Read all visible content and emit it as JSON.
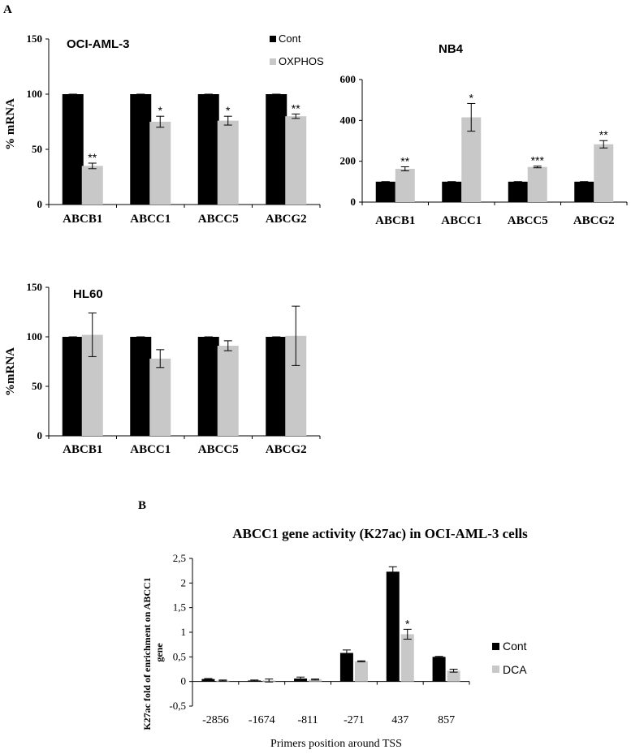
{
  "figure": {
    "panel_a_label": "A",
    "panel_b_label": "B"
  },
  "colors": {
    "cont": "#000000",
    "treated": "#c8c8c8",
    "axis": "#000000"
  },
  "chart_data": [
    {
      "id": "oci",
      "type": "bar",
      "title": "OCI-AML-3",
      "ylabel": "% mRNA",
      "xlabel": "",
      "ylim": [
        0,
        150
      ],
      "yticks": [
        "0",
        "50",
        "100",
        "150"
      ],
      "categories": [
        "ABCB1",
        "ABCC1",
        "ABCC5",
        "ABCG2"
      ],
      "legend": {
        "position": "top-right",
        "entries": [
          "Cont",
          "OXPHOS"
        ]
      },
      "series": [
        {
          "name": "Cont",
          "values": [
            100,
            100,
            100,
            100
          ],
          "errors": [
            0,
            0,
            0,
            0
          ]
        },
        {
          "name": "OXPHOS",
          "values": [
            35,
            75,
            76,
            80
          ],
          "errors": [
            2.5,
            5,
            4,
            2
          ]
        }
      ],
      "significance": [
        "**",
        "*",
        "*",
        "**"
      ]
    },
    {
      "id": "nb4",
      "type": "bar",
      "title": "NB4",
      "ylabel": "",
      "xlabel": "",
      "ylim": [
        0,
        600
      ],
      "yticks": [
        "0",
        "200",
        "400",
        "600"
      ],
      "categories": [
        "ABCB1",
        "ABCC1",
        "ABCC5",
        "ABCG2"
      ],
      "series": [
        {
          "name": "Cont",
          "values": [
            100,
            100,
            100,
            100
          ],
          "errors": [
            0,
            0,
            0,
            0
          ]
        },
        {
          "name": "OXPHOS",
          "values": [
            163,
            415,
            172,
            283
          ],
          "errors": [
            10,
            68,
            4,
            18
          ]
        }
      ],
      "significance": [
        "**",
        "*",
        "***",
        "**"
      ]
    },
    {
      "id": "hl60",
      "type": "bar",
      "title": "HL60",
      "ylabel": "%mRNA",
      "xlabel": "",
      "ylim": [
        0,
        150
      ],
      "yticks": [
        "0",
        "50",
        "100",
        "150"
      ],
      "categories": [
        "ABCB1",
        "ABCC1",
        "ABCC5",
        "ABCG2"
      ],
      "series": [
        {
          "name": "Cont",
          "values": [
            100,
            100,
            100,
            100
          ],
          "errors": [
            0,
            0,
            0,
            0
          ]
        },
        {
          "name": "OXPHOS",
          "values": [
            102,
            78,
            91,
            101
          ],
          "errors": [
            22,
            9,
            5,
            30
          ]
        }
      ],
      "significance": [
        "",
        "",
        "",
        ""
      ]
    },
    {
      "id": "k27ac",
      "type": "bar",
      "title": "ABCC1 gene activity (K27ac) in OCI-AML-3 cells",
      "ylabel": "K27ac fold of enrichment on ABCC1 gene",
      "xlabel": "Primers position around TSS",
      "ylim": [
        -0.5,
        2.5
      ],
      "yticks": [
        "-0,5",
        "0",
        "0,5",
        "1",
        "1,5",
        "2",
        "2,5"
      ],
      "categories": [
        "-2856",
        "-1674",
        "-811",
        "-271",
        "437",
        "857"
      ],
      "legend": {
        "position": "right",
        "entries": [
          "Cont",
          "DCA"
        ]
      },
      "series": [
        {
          "name": "Cont",
          "values": [
            0.05,
            0.02,
            0.06,
            0.58,
            2.23,
            0.5
          ],
          "errors": [
            0.01,
            0.01,
            0.03,
            0.06,
            0.1,
            0.01
          ]
        },
        {
          "name": "DCA",
          "values": [
            0.02,
            0.02,
            0.04,
            0.41,
            0.96,
            0.22
          ],
          "errors": [
            0.01,
            0.03,
            0.01,
            0.01,
            0.1,
            0.03
          ]
        }
      ],
      "significance": [
        "",
        "",
        "",
        "",
        "*",
        ""
      ]
    }
  ]
}
